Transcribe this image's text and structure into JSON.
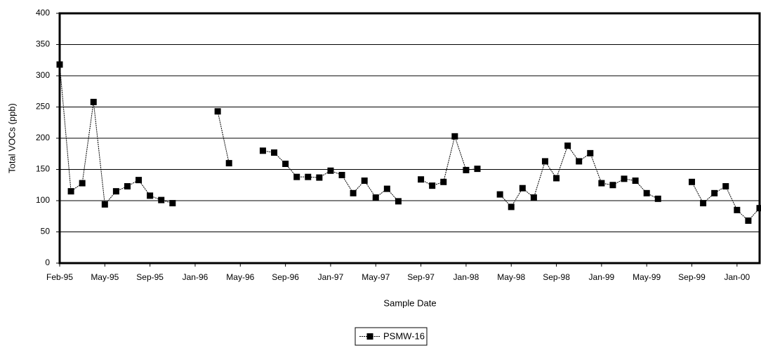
{
  "chart_data": {
    "type": "line",
    "x_label": "Sample Date",
    "y_label": "Total VOCs (ppb)",
    "categories": [
      "Feb-95",
      null,
      null,
      null,
      "May-95",
      null,
      null,
      null,
      "Sep-95",
      null,
      null,
      null,
      "Jan-96",
      null,
      null,
      null,
      "May-96",
      null,
      null,
      null,
      "Sep-96",
      null,
      null,
      null,
      "Jan-97",
      null,
      null,
      null,
      "May-97",
      null,
      null,
      null,
      "Sep-97",
      null,
      null,
      null,
      "Jan-98",
      null,
      null,
      null,
      "May-98",
      null,
      null,
      null,
      "Sep-98",
      null,
      null,
      null,
      "Jan-99",
      null,
      null,
      null,
      "May-99",
      null,
      null,
      null,
      "Sep-99",
      null,
      null,
      null,
      "Jan-00",
      null,
      null
    ],
    "series": [
      {
        "name": "PSMW-16",
        "color": "#000000",
        "values": [
          318,
          115,
          128,
          258,
          94,
          115,
          123,
          133,
          108,
          101,
          96,
          null,
          null,
          null,
          243,
          160,
          null,
          null,
          180,
          177,
          159,
          138,
          138,
          137,
          148,
          141,
          112,
          132,
          105,
          119,
          99,
          null,
          134,
          124,
          130,
          203,
          149,
          151,
          null,
          110,
          90,
          120,
          105,
          163,
          136,
          188,
          163,
          176,
          128,
          125,
          135,
          132,
          112,
          103,
          null,
          null,
          130,
          96,
          112,
          123,
          85,
          68,
          88
        ]
      }
    ],
    "ylim": [
      0,
      400
    ],
    "yticks": [
      0,
      50,
      100,
      150,
      200,
      250,
      300,
      350,
      400
    ],
    "grid": true,
    "legend": "bottom"
  }
}
